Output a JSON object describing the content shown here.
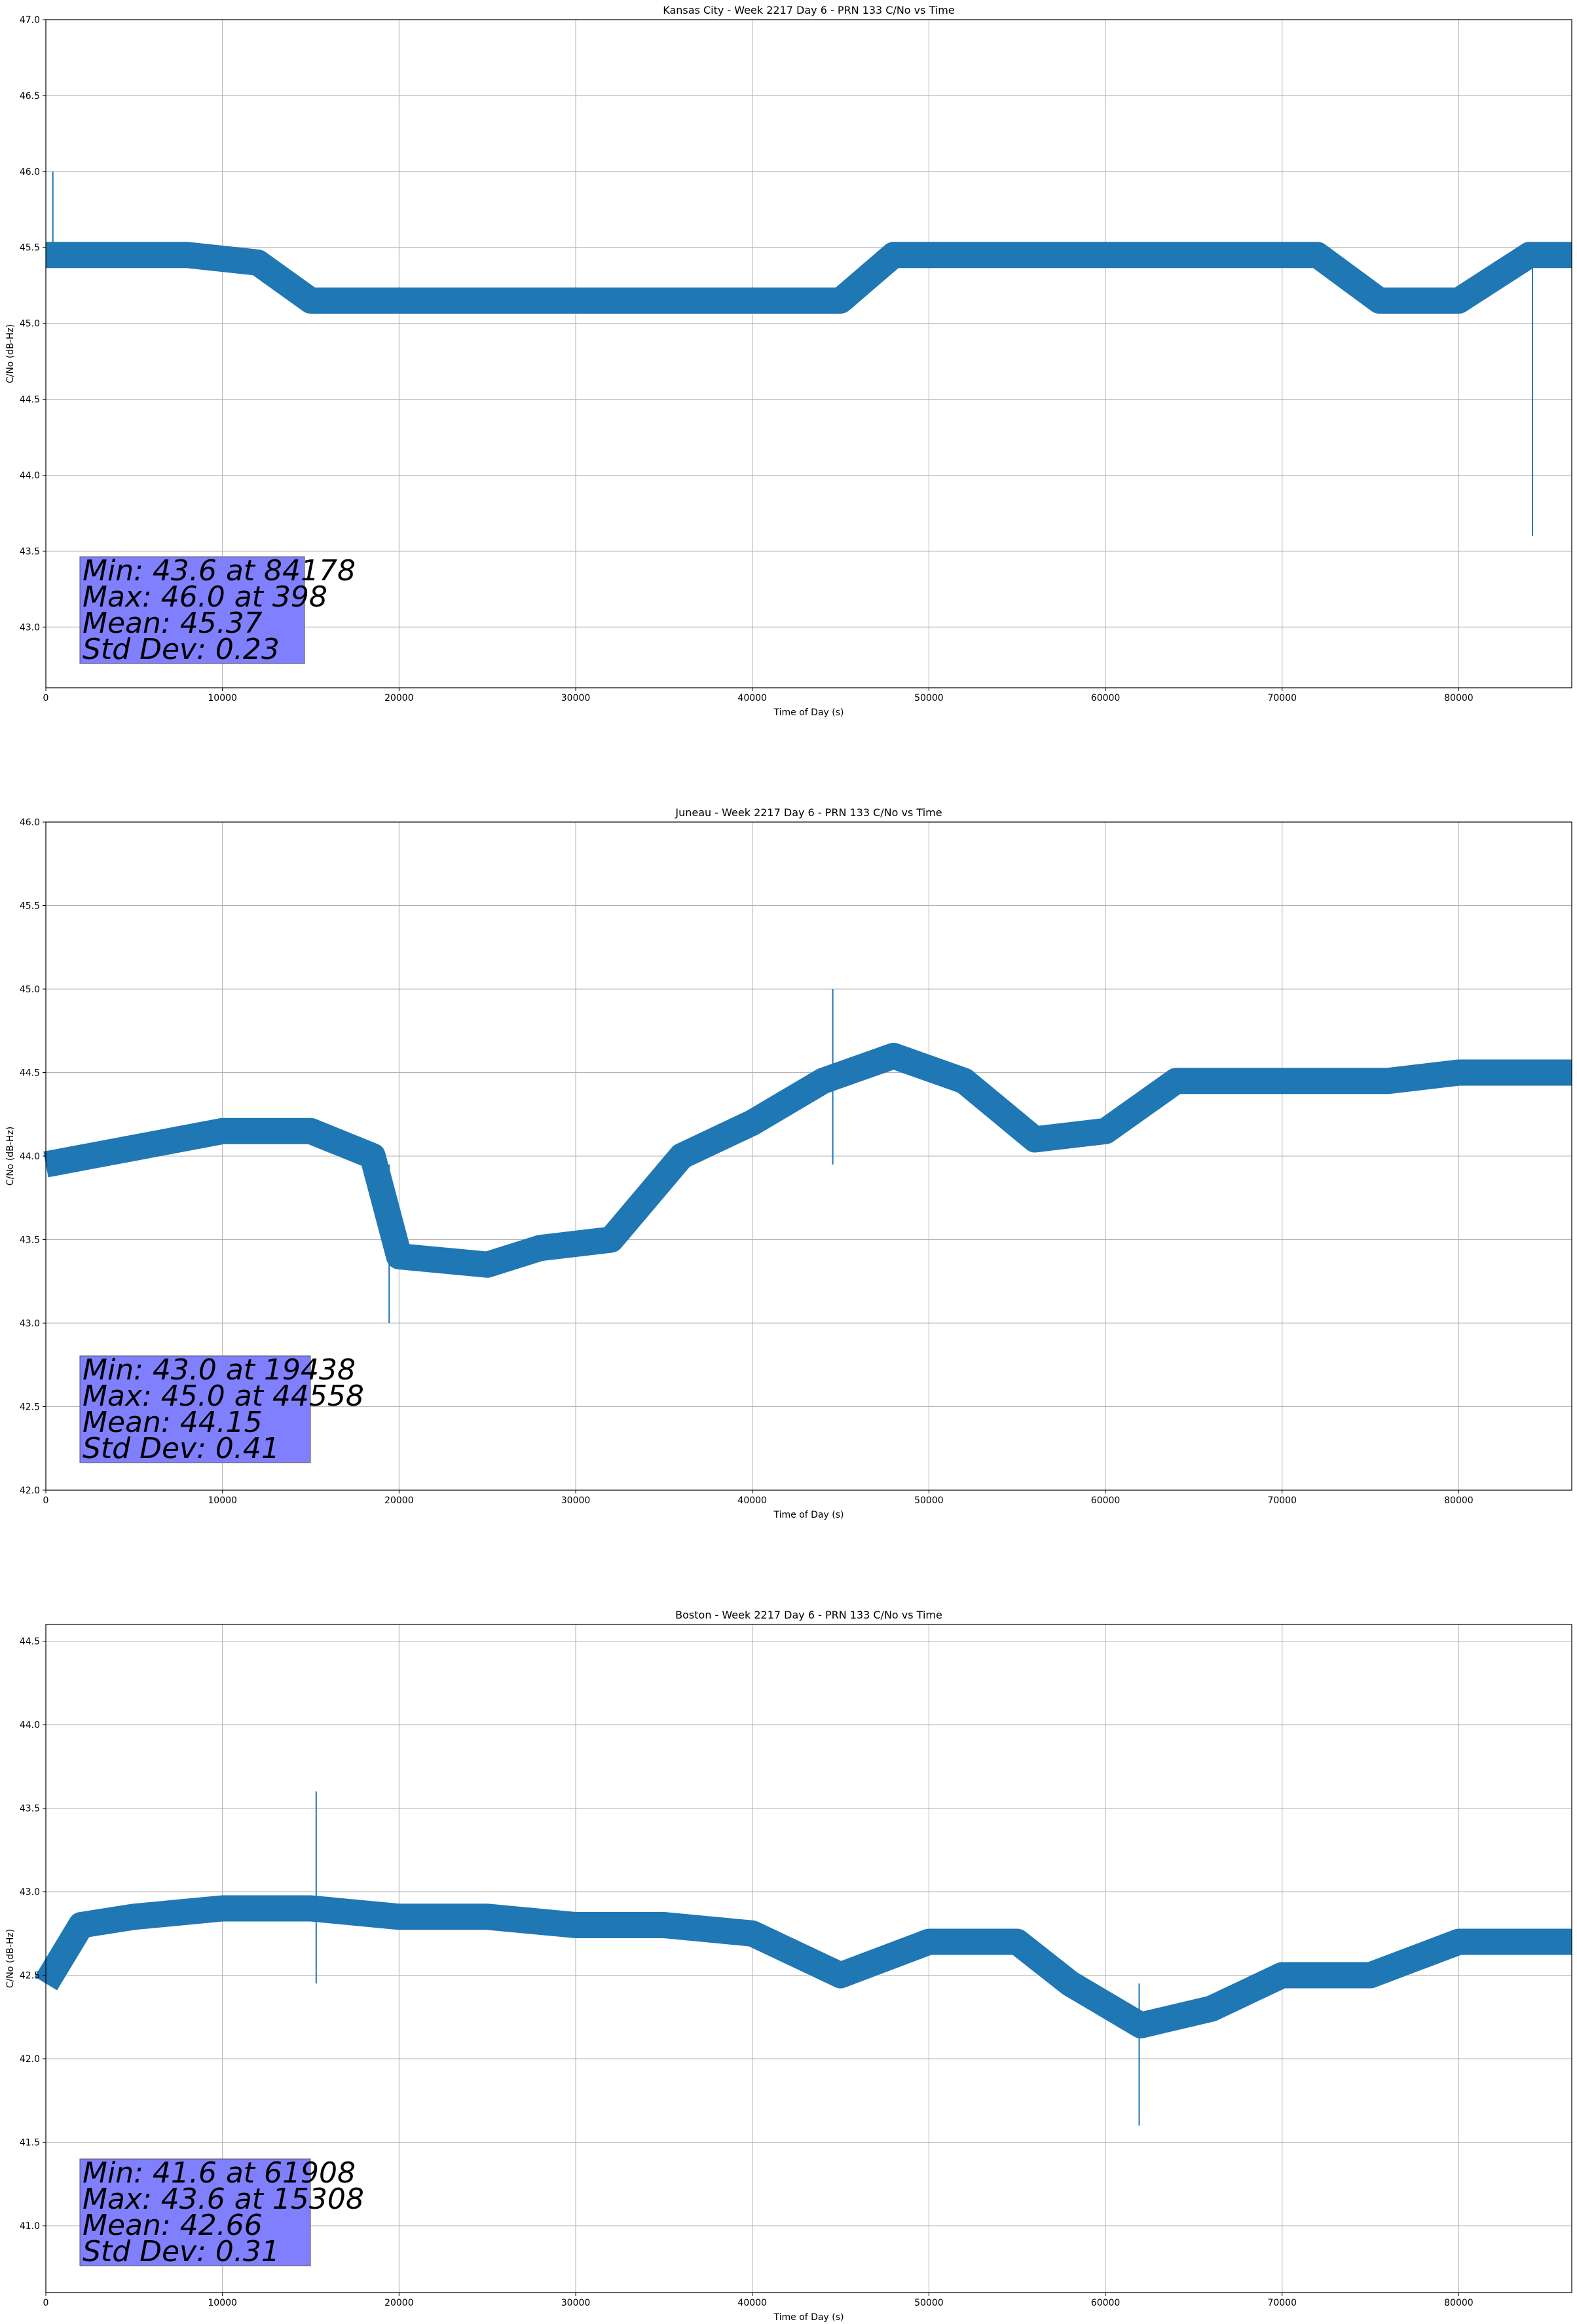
{
  "chart_data": [
    {
      "type": "line",
      "title": "Kansas City - Week 2217 Day 6 - PRN 133 C/No vs Time",
      "xlabel": "Time of Day (s)",
      "ylabel": "C/No (dB-Hz)",
      "xlim": [
        0,
        86400
      ],
      "ylim": [
        42.6,
        47.0
      ],
      "xticks": [
        0,
        10000,
        20000,
        30000,
        40000,
        50000,
        60000,
        70000,
        80000
      ],
      "yticks": [
        43.0,
        43.5,
        44.0,
        44.5,
        45.0,
        45.5,
        46.0,
        46.5,
        47.0
      ],
      "grid": true,
      "color": "#1f77b4",
      "series": [
        {
          "name": "C/No",
          "x": [
            0,
            4000,
            8000,
            12000,
            15000,
            20000,
            25000,
            30000,
            35000,
            40000,
            45000,
            48000,
            52000,
            56000,
            60000,
            64000,
            68000,
            72000,
            75500,
            80000,
            84000,
            86400
          ],
          "y": [
            45.45,
            45.45,
            45.45,
            45.4,
            45.15,
            45.15,
            45.15,
            45.15,
            45.15,
            45.15,
            45.15,
            45.45,
            45.45,
            45.45,
            45.45,
            45.45,
            45.45,
            45.45,
            45.15,
            45.15,
            45.45,
            45.45
          ]
        }
      ],
      "stats": {
        "min": "Min: 43.6 at 84178",
        "max": "Max: 46.0 at 398",
        "mean": "Mean: 45.37",
        "std": "Std Dev: 0.23"
      }
    },
    {
      "type": "line",
      "title": "Juneau - Week 2217 Day 6 - PRN 133 C/No vs Time",
      "xlabel": "Time of Day (s)",
      "ylabel": "C/No (dB-Hz)",
      "xlim": [
        0,
        86400
      ],
      "ylim": [
        42.0,
        46.0
      ],
      "xticks": [
        0,
        10000,
        20000,
        30000,
        40000,
        50000,
        60000,
        70000,
        80000
      ],
      "yticks": [
        42.0,
        42.5,
        43.0,
        43.5,
        44.0,
        44.5,
        45.0,
        45.5,
        46.0
      ],
      "grid": true,
      "color": "#1f77b4",
      "series": [
        {
          "name": "C/No",
          "x": [
            0,
            5000,
            10000,
            15000,
            18500,
            20000,
            25000,
            28000,
            32000,
            36000,
            40000,
            44000,
            48000,
            52000,
            56000,
            60000,
            64000,
            68000,
            72000,
            76000,
            80000,
            86400
          ],
          "y": [
            43.95,
            44.05,
            44.15,
            44.15,
            44.0,
            43.4,
            43.35,
            43.45,
            43.5,
            44.0,
            44.2,
            44.45,
            44.6,
            44.45,
            44.1,
            44.15,
            44.45,
            44.45,
            44.45,
            44.45,
            44.5,
            44.5
          ]
        }
      ],
      "stats": {
        "min": "Min: 43.0 at 19438",
        "max": "Max: 45.0 at 44558",
        "mean": "Mean: 44.15",
        "std": "Std Dev: 0.41"
      }
    },
    {
      "type": "line",
      "title": "Boston - Week 2217 Day 6 - PRN 133 C/No vs Time",
      "xlabel": "Time of Day (s)",
      "ylabel": "C/No (dB-Hz)",
      "xlim": [
        0,
        86400
      ],
      "ylim": [
        40.6,
        44.6
      ],
      "xticks": [
        0,
        10000,
        20000,
        30000,
        40000,
        50000,
        60000,
        70000,
        80000
      ],
      "yticks": [
        41.0,
        41.5,
        42.0,
        42.5,
        43.0,
        43.5,
        44.0,
        44.5
      ],
      "grid": true,
      "color": "#1f77b4",
      "series": [
        {
          "name": "C/No",
          "x": [
            0,
            2000,
            5000,
            10000,
            15000,
            20000,
            25000,
            30000,
            35000,
            40000,
            45000,
            50000,
            55000,
            58000,
            62000,
            66000,
            70000,
            75000,
            80000,
            86400
          ],
          "y": [
            42.45,
            42.8,
            42.85,
            42.9,
            42.9,
            42.85,
            42.85,
            42.8,
            42.8,
            42.75,
            42.5,
            42.7,
            42.7,
            42.45,
            42.2,
            42.3,
            42.5,
            42.5,
            42.7,
            42.7
          ]
        }
      ],
      "stats": {
        "min": "Min: 41.6 at 61908",
        "max": "Max: 43.6 at 15308",
        "mean": "Mean: 42.66",
        "std": "Std Dev: 0.31"
      }
    }
  ]
}
